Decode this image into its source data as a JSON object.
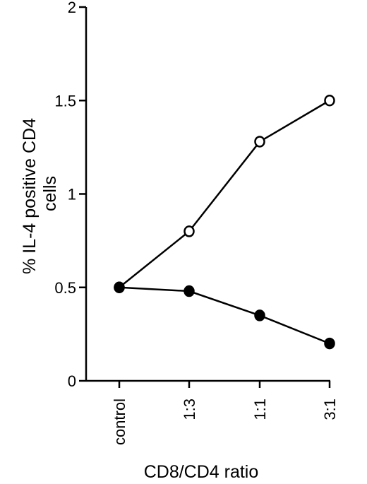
{
  "chart_data": {
    "type": "line",
    "categories": [
      "control",
      "1:3",
      "1:1",
      "3:1"
    ],
    "xlabel": "CD8/CD4 ratio",
    "ylabel_lines": [
      "% IL-4 positive CD4",
      "cells"
    ],
    "ylim": [
      0,
      2
    ],
    "yticks": [
      {
        "value": 0,
        "label": "0"
      },
      {
        "value": 0.5,
        "label": "0.5"
      },
      {
        "value": 1,
        "label": "1"
      },
      {
        "value": 1.5,
        "label": "1.5"
      },
      {
        "value": 2,
        "label": "2"
      }
    ],
    "grid": false,
    "series": [
      {
        "marker": "open-circle",
        "values": [
          0.5,
          0.8,
          1.28,
          1.5
        ]
      },
      {
        "marker": "filled-circle",
        "values": [
          0.5,
          0.48,
          0.35,
          0.2
        ]
      }
    ]
  }
}
